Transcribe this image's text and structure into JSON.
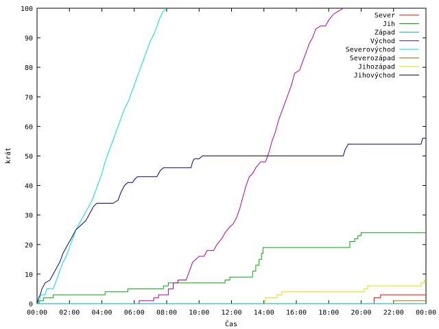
{
  "chart_data": {
    "type": "line",
    "title": "",
    "xlabel": "Čas",
    "ylabel": "krát",
    "xlim": [
      0,
      24
    ],
    "ylim": [
      0,
      100
    ],
    "grid": false,
    "legend_position": "top-right",
    "x_ticks": [
      {
        "v": 0,
        "label": "00:00"
      },
      {
        "v": 2,
        "label": "02:00"
      },
      {
        "v": 4,
        "label": "04:00"
      },
      {
        "v": 6,
        "label": "06:00"
      },
      {
        "v": 8,
        "label": "08:00"
      },
      {
        "v": 10,
        "label": "10:00"
      },
      {
        "v": 12,
        "label": "12:00"
      },
      {
        "v": 14,
        "label": "14:00"
      },
      {
        "v": 16,
        "label": "16:00"
      },
      {
        "v": 18,
        "label": "18:00"
      },
      {
        "v": 20,
        "label": "20:00"
      },
      {
        "v": 22,
        "label": "22:00"
      },
      {
        "v": 24,
        "label": "00:00"
      }
    ],
    "y_ticks": [
      {
        "v": 0,
        "label": "0"
      },
      {
        "v": 10,
        "label": "10"
      },
      {
        "v": 20,
        "label": "20"
      },
      {
        "v": 30,
        "label": "30"
      },
      {
        "v": 40,
        "label": "40"
      },
      {
        "v": 50,
        "label": "50"
      },
      {
        "v": 60,
        "label": "60"
      },
      {
        "v": 70,
        "label": "70"
      },
      {
        "v": 80,
        "label": "80"
      },
      {
        "v": 90,
        "label": "90"
      },
      {
        "v": 100,
        "label": "100"
      }
    ],
    "series": [
      {
        "name": "Sever",
        "color": "#ff0000",
        "points": [
          [
            20.8,
            0
          ],
          [
            20.8,
            2
          ],
          [
            21.2,
            2
          ],
          [
            21.2,
            3
          ],
          [
            24,
            3
          ]
        ]
      },
      {
        "name": "Jih",
        "color": "#00aa00",
        "points": [
          [
            0,
            0
          ],
          [
            0.1,
            0
          ],
          [
            0.1,
            1
          ],
          [
            0.4,
            1
          ],
          [
            0.4,
            2
          ],
          [
            1.0,
            2
          ],
          [
            1.0,
            3
          ],
          [
            4.2,
            3
          ],
          [
            4.2,
            4
          ],
          [
            5.6,
            4
          ],
          [
            5.6,
            5
          ],
          [
            7.8,
            5
          ],
          [
            7.8,
            6
          ],
          [
            8.1,
            6
          ],
          [
            8.1,
            7
          ],
          [
            11.6,
            7
          ],
          [
            11.6,
            8
          ],
          [
            11.9,
            8
          ],
          [
            11.9,
            9
          ],
          [
            13.3,
            9
          ],
          [
            13.3,
            11
          ],
          [
            13.5,
            11
          ],
          [
            13.5,
            13
          ],
          [
            13.7,
            13
          ],
          [
            13.7,
            15
          ],
          [
            13.85,
            15
          ],
          [
            13.85,
            17
          ],
          [
            13.95,
            17
          ],
          [
            13.95,
            19
          ],
          [
            19.3,
            19
          ],
          [
            19.3,
            21
          ],
          [
            19.6,
            21
          ],
          [
            19.6,
            22
          ],
          [
            19.8,
            22
          ],
          [
            19.8,
            23
          ],
          [
            20.0,
            23
          ],
          [
            20.0,
            24
          ],
          [
            24,
            24
          ]
        ]
      },
      {
        "name": "Západ",
        "color": "#00aaaa",
        "points": [
          [
            0,
            0
          ],
          [
            24,
            0
          ]
        ]
      },
      {
        "name": "Východ",
        "color": "#aa00aa",
        "points": [
          [
            6.3,
            0
          ],
          [
            6.3,
            1
          ],
          [
            7.2,
            1
          ],
          [
            7.2,
            2
          ],
          [
            7.5,
            2
          ],
          [
            7.5,
            3
          ],
          [
            8.1,
            3
          ],
          [
            8.1,
            5
          ],
          [
            8.4,
            5
          ],
          [
            8.4,
            7
          ],
          [
            8.7,
            7
          ],
          [
            8.7,
            8
          ],
          [
            9.2,
            8
          ],
          [
            9.4,
            11
          ],
          [
            9.6,
            14
          ],
          [
            9.8,
            15
          ],
          [
            10.0,
            16
          ],
          [
            10.3,
            16
          ],
          [
            10.5,
            18
          ],
          [
            10.9,
            18
          ],
          [
            11.1,
            20
          ],
          [
            11.4,
            22
          ],
          [
            11.6,
            24
          ],
          [
            11.9,
            26
          ],
          [
            12.1,
            27
          ],
          [
            12.3,
            29
          ],
          [
            12.5,
            32
          ],
          [
            12.7,
            36
          ],
          [
            12.9,
            40
          ],
          [
            13.1,
            43
          ],
          [
            13.3,
            44
          ],
          [
            13.5,
            46
          ],
          [
            13.8,
            48
          ],
          [
            14.1,
            48
          ],
          [
            14.3,
            51
          ],
          [
            14.5,
            55
          ],
          [
            14.7,
            58
          ],
          [
            14.9,
            62
          ],
          [
            15.1,
            65
          ],
          [
            15.3,
            68
          ],
          [
            15.5,
            71
          ],
          [
            15.7,
            74
          ],
          [
            15.9,
            78
          ],
          [
            16.2,
            79
          ],
          [
            16.4,
            82
          ],
          [
            16.6,
            85
          ],
          [
            16.8,
            88
          ],
          [
            17.0,
            90
          ],
          [
            17.2,
            93
          ],
          [
            17.5,
            94
          ],
          [
            17.8,
            94
          ],
          [
            18.0,
            96
          ],
          [
            18.3,
            98
          ],
          [
            18.6,
            99
          ],
          [
            18.9,
            100
          ]
        ]
      },
      {
        "name": "Severovýchod",
        "color": "#00dddd",
        "points": [
          [
            0.15,
            0
          ],
          [
            0.2,
            3
          ],
          [
            0.5,
            3
          ],
          [
            0.6,
            5
          ],
          [
            1.0,
            5
          ],
          [
            1.2,
            8
          ],
          [
            1.4,
            11
          ],
          [
            1.6,
            14
          ],
          [
            1.8,
            16
          ],
          [
            2.0,
            19
          ],
          [
            2.2,
            22
          ],
          [
            2.4,
            25
          ],
          [
            2.6,
            27
          ],
          [
            2.8,
            29
          ],
          [
            3.0,
            31
          ],
          [
            3.2,
            33
          ],
          [
            3.4,
            35
          ],
          [
            3.6,
            38
          ],
          [
            3.8,
            41
          ],
          [
            4.0,
            44
          ],
          [
            4.2,
            48
          ],
          [
            4.4,
            51
          ],
          [
            4.6,
            54
          ],
          [
            4.8,
            57
          ],
          [
            5.0,
            60
          ],
          [
            5.2,
            63
          ],
          [
            5.4,
            66
          ],
          [
            5.6,
            68
          ],
          [
            5.8,
            71
          ],
          [
            6.0,
            74
          ],
          [
            6.2,
            77
          ],
          [
            6.4,
            80
          ],
          [
            6.6,
            83
          ],
          [
            6.8,
            86
          ],
          [
            7.0,
            89
          ],
          [
            7.2,
            91
          ],
          [
            7.4,
            94
          ],
          [
            7.6,
            97
          ],
          [
            7.8,
            99
          ],
          [
            8.0,
            100
          ]
        ]
      },
      {
        "name": "Severozápad",
        "color": "#cc6600",
        "points": [
          [
            22.0,
            0
          ],
          [
            22.0,
            1
          ],
          [
            24,
            1
          ]
        ]
      },
      {
        "name": "Jihozápad",
        "color": "#dddd00",
        "points": [
          [
            14.1,
            0
          ],
          [
            14.1,
            2
          ],
          [
            14.8,
            2
          ],
          [
            14.8,
            3
          ],
          [
            15.1,
            3
          ],
          [
            15.1,
            4
          ],
          [
            20.2,
            4
          ],
          [
            20.2,
            5
          ],
          [
            20.4,
            5
          ],
          [
            20.4,
            6
          ],
          [
            23.7,
            6
          ],
          [
            23.7,
            7
          ],
          [
            23.9,
            7
          ],
          [
            23.9,
            8
          ],
          [
            24,
            8
          ]
        ]
      },
      {
        "name": "Jihovýchod",
        "color": "#00008b",
        "points": [
          [
            0,
            0
          ],
          [
            0.1,
            2
          ],
          [
            0.2,
            3
          ],
          [
            0.3,
            5
          ],
          [
            0.5,
            7
          ],
          [
            0.8,
            8
          ],
          [
            1.0,
            10
          ],
          [
            1.2,
            12
          ],
          [
            1.4,
            14
          ],
          [
            1.6,
            17
          ],
          [
            1.8,
            19
          ],
          [
            2.0,
            21
          ],
          [
            2.2,
            23
          ],
          [
            2.4,
            25
          ],
          [
            2.6,
            26
          ],
          [
            2.8,
            27
          ],
          [
            3.0,
            28
          ],
          [
            3.2,
            30
          ],
          [
            3.5,
            33
          ],
          [
            3.7,
            34
          ],
          [
            4.0,
            34
          ],
          [
            4.7,
            34
          ],
          [
            5.0,
            35
          ],
          [
            5.2,
            38
          ],
          [
            5.4,
            40
          ],
          [
            5.6,
            41
          ],
          [
            5.9,
            41
          ],
          [
            6.0,
            42
          ],
          [
            6.2,
            43
          ],
          [
            7.4,
            43
          ],
          [
            7.6,
            45
          ],
          [
            7.8,
            46
          ],
          [
            9.5,
            46
          ],
          [
            9.6,
            48
          ],
          [
            9.7,
            49
          ],
          [
            10.0,
            49
          ],
          [
            10.2,
            50
          ],
          [
            18.9,
            50
          ],
          [
            19.0,
            52
          ],
          [
            19.1,
            53
          ],
          [
            19.2,
            54
          ],
          [
            23.7,
            54
          ],
          [
            23.8,
            56
          ],
          [
            24,
            56
          ]
        ]
      }
    ]
  }
}
